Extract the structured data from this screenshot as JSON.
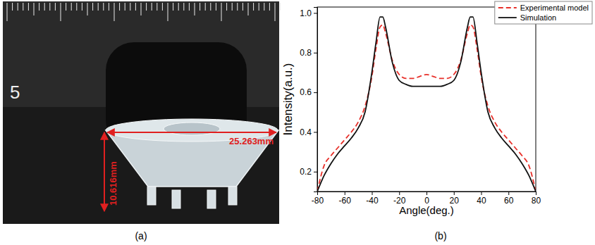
{
  "panels": {
    "a": "(a)",
    "b": "(b)"
  },
  "photo": {
    "ruler_label": "5",
    "width_label": "25.263mm",
    "height_label": "10.616mm"
  },
  "chart_data": {
    "type": "line",
    "x_label": "Angle(deg.)",
    "y_label": "Intensity(a.u.)",
    "x": [
      -80,
      -75,
      -70,
      -65,
      -60,
      -55,
      -50,
      -45,
      -40,
      -37,
      -34,
      -32,
      -30,
      -25,
      -20,
      -15,
      -10,
      -5,
      0,
      5,
      10,
      15,
      20,
      25,
      30,
      32,
      34,
      37,
      40,
      45,
      50,
      55,
      60,
      65,
      70,
      75,
      80
    ],
    "series": [
      {
        "name": "Experimental model",
        "color": "#e8302a",
        "line_style": "dashed",
        "values": [
          0.1,
          0.23,
          0.28,
          0.32,
          0.36,
          0.4,
          0.45,
          0.53,
          0.68,
          0.82,
          0.93,
          0.94,
          0.9,
          0.76,
          0.69,
          0.67,
          0.67,
          0.68,
          0.69,
          0.68,
          0.67,
          0.67,
          0.69,
          0.76,
          0.9,
          0.94,
          0.93,
          0.82,
          0.68,
          0.53,
          0.45,
          0.4,
          0.36,
          0.32,
          0.28,
          0.23,
          0.1
        ]
      },
      {
        "name": "Simulation",
        "color": "#111111",
        "line_style": "solid",
        "values": [
          0.1,
          0.18,
          0.24,
          0.29,
          0.33,
          0.37,
          0.42,
          0.5,
          0.7,
          0.85,
          0.98,
          0.98,
          0.93,
          0.75,
          0.66,
          0.64,
          0.63,
          0.63,
          0.63,
          0.63,
          0.63,
          0.64,
          0.66,
          0.75,
          0.93,
          0.98,
          0.98,
          0.85,
          0.7,
          0.5,
          0.42,
          0.37,
          0.33,
          0.29,
          0.24,
          0.18,
          0.1
        ]
      }
    ],
    "xlim": [
      -80,
      80
    ],
    "xticks": [
      -80,
      -60,
      -40,
      -20,
      0,
      20,
      40,
      60,
      80
    ],
    "ylim": [
      0.1,
      1.03
    ],
    "yticks": [
      0.2,
      0.4,
      0.6,
      0.8,
      {
        "value": 1,
        "label": "1.0"
      }
    ],
    "legend": "upper right",
    "grid": false
  }
}
